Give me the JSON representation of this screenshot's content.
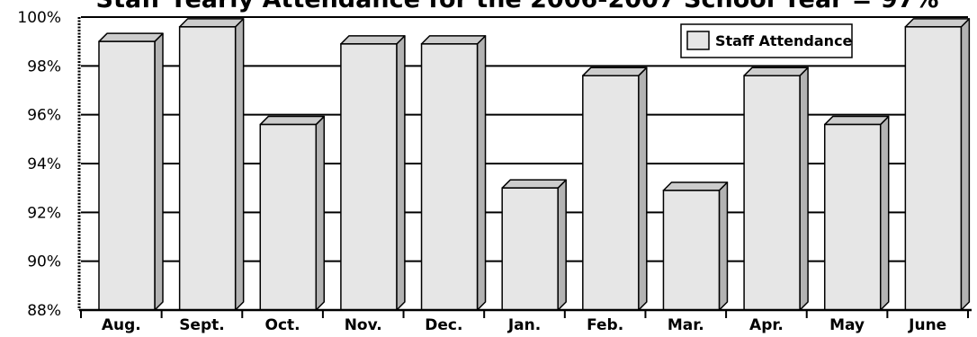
{
  "chart_data": {
    "type": "bar",
    "title": "Staff Yearly Attendance for the 2006-2007 School Year = 97%",
    "categories": [
      "Aug.",
      "Sept.",
      "Oct.",
      "Nov.",
      "Dec.",
      "Jan.",
      "Feb.",
      "Mar.",
      "Apr.",
      "May",
      "June"
    ],
    "series": [
      {
        "name": "Staff Attendance",
        "values": [
          99.0,
          99.6,
          95.6,
          98.9,
          98.9,
          93.0,
          97.6,
          92.9,
          97.6,
          95.6,
          99.6
        ]
      }
    ],
    "yticks": [
      "88%",
      "90%",
      "92%",
      "94%",
      "96%",
      "98%",
      "100%"
    ],
    "ylim": [
      88,
      100
    ],
    "grid": true,
    "legend": "top-right",
    "bar_front_color": "#e6e6e6",
    "bar_side_color": "#b3b3b3",
    "bar_top_color": "#cccccc"
  }
}
